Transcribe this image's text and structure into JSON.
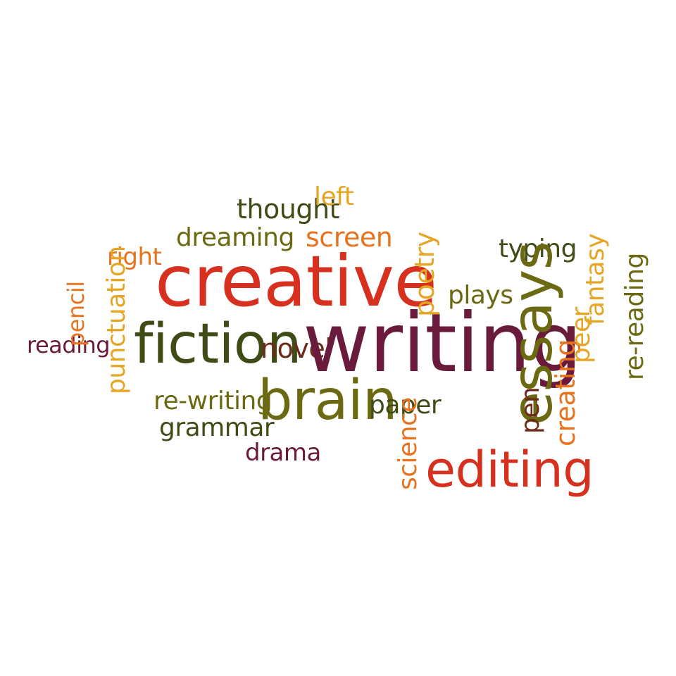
{
  "colors": {
    "red": "#d7301f",
    "orange": "#e8731f",
    "gold": "#e6a623",
    "olive": "#6b6a12",
    "darkgreen": "#3f4c16",
    "maroon": "#6a1a3a",
    "brown": "#6e2a18"
  },
  "words": {
    "creative": "creative",
    "writing": "writing",
    "fiction": "fiction",
    "brain": "brain",
    "essays": "essays",
    "editing": "editing",
    "thought": "thought",
    "left": "left",
    "dreaming": "dreaming",
    "screen": "screen",
    "right": "right",
    "pencil": "pencil",
    "punctuation": "punctuation",
    "reading": "reading",
    "novel": "novel",
    "re_writing": "re-writing",
    "grammar": "grammar",
    "drama": "drama",
    "paper": "paper",
    "science": "science",
    "poetry": "poetry",
    "plays": "plays",
    "typing": "typing",
    "pen": "pen",
    "creating": "creating",
    "peer": "peer",
    "fantasy": "fantasy",
    "re_reading": "re-reading"
  }
}
